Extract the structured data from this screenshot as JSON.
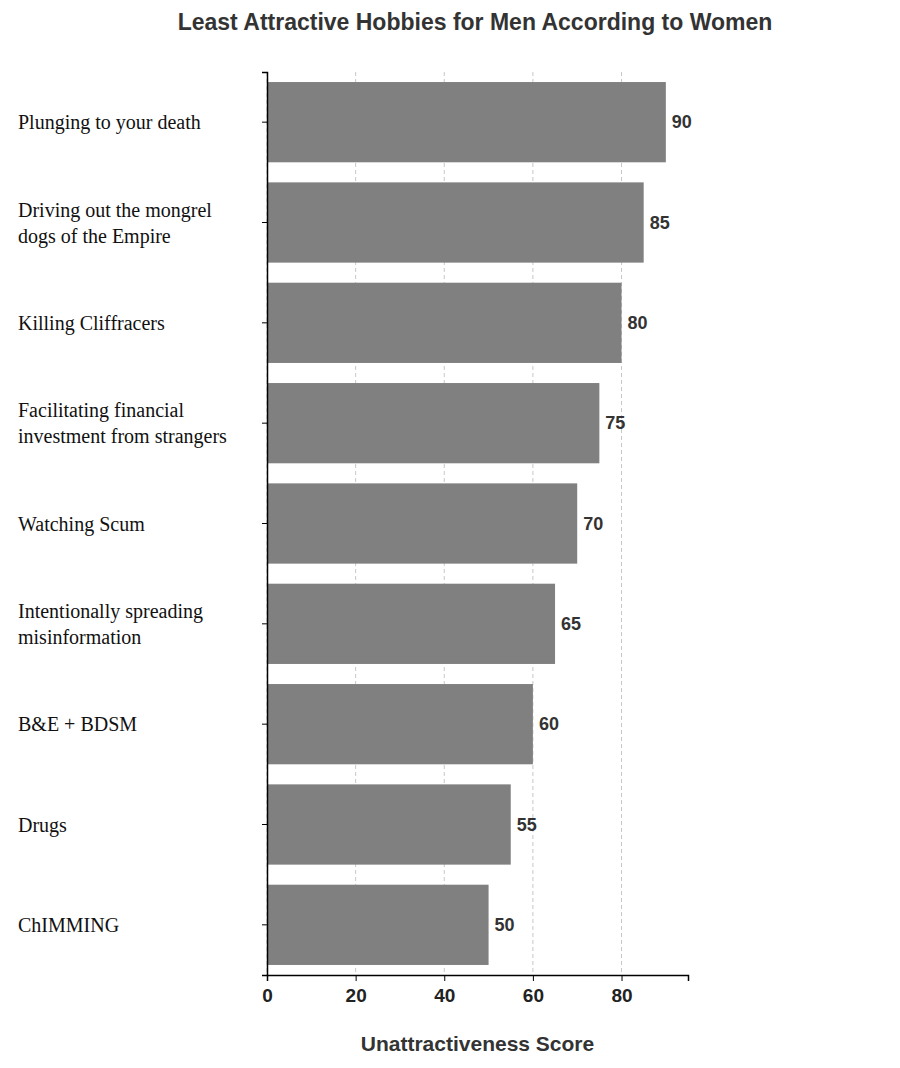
{
  "chart_data": {
    "type": "bar",
    "orientation": "horizontal",
    "title": "Least Attractive Hobbies for Men According to Women",
    "xlabel": "Unattractiveness Score",
    "categories": [
      "Plunging to your death",
      "Driving out the mongrel dogs of the Empire",
      "Killing Cliffracers",
      "Facilitating financial investment from strangers",
      "Watching Scum",
      "Intentionally spreading misinformation",
      "B&E + BDSM",
      "Drugs",
      "ChIMMING"
    ],
    "values": [
      90,
      85,
      80,
      75,
      70,
      65,
      60,
      55,
      50
    ],
    "color": "#808080",
    "xlim": [
      0,
      95
    ],
    "xticks": [
      0,
      20,
      40,
      60,
      80
    ],
    "grid": true,
    "data_labels": true
  }
}
